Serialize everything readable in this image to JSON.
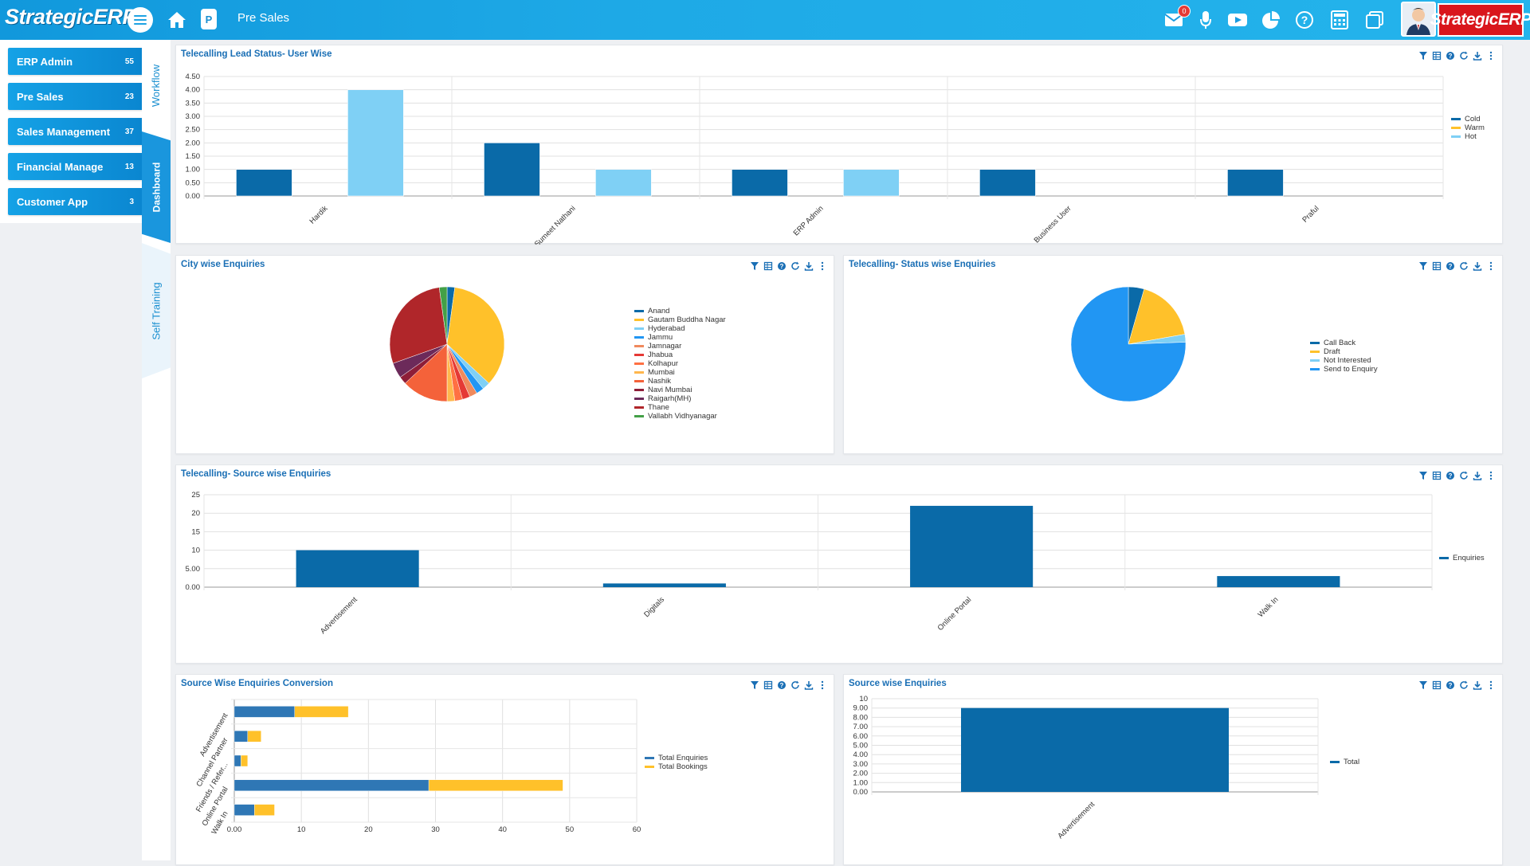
{
  "header": {
    "logo_text": "StrategicERP",
    "logo_mark": "®",
    "breadcrumb": "Pre Sales",
    "p_label": "P",
    "mail_badge": "0",
    "brand_logo_text": "StrategicERP",
    "icons": [
      "menu-icon",
      "home-icon",
      "mail-icon",
      "mic-icon",
      "youtube-icon",
      "pie-chart-icon",
      "help-icon",
      "calculator-icon",
      "windows-icon"
    ],
    "accent_color": "#1ea9e6"
  },
  "sidebar": {
    "items": [
      {
        "label": "ERP Admin",
        "count": "55"
      },
      {
        "label": "Pre Sales",
        "count": "23"
      },
      {
        "label": "Sales Management",
        "count": "37"
      },
      {
        "label": "Financial Manage",
        "count": "13"
      },
      {
        "label": "Customer App",
        "count": "3"
      }
    ]
  },
  "vtabs": {
    "workflow": "Workflow",
    "dashboard": "Dashboard",
    "training": "Self Training"
  },
  "panels": {
    "lead_status": {
      "title": "Telecalling Lead Status- User Wise"
    },
    "city": {
      "title": "City wise Enquiries"
    },
    "status": {
      "title": "Telecalling- Status wise Enquiries"
    },
    "source": {
      "title": "Telecalling- Source wise Enquiries"
    },
    "conversion": {
      "title": "Source Wise Enquiries Conversion"
    },
    "source_total": {
      "title": "Source wise Enquiries"
    }
  },
  "chart_data": [
    {
      "type": "bar",
      "title": "Telecalling Lead Status- User Wise",
      "categories": [
        "Hardik",
        "Sumeet Nathani",
        "ERP Admin",
        "Business User",
        "Praful"
      ],
      "series": [
        {
          "name": "Cold",
          "color": "#0a6aa8",
          "values": [
            1,
            2,
            1,
            1,
            1
          ]
        },
        {
          "name": "Warm",
          "color": "#ffc12a",
          "values": [
            0,
            0,
            0,
            0,
            0
          ]
        },
        {
          "name": "Hot",
          "color": "#7fd0f5",
          "values": [
            4,
            1,
            1,
            0,
            0
          ]
        }
      ],
      "yticks": [
        "0.00",
        "0.50",
        "1.00",
        "1.50",
        "2.00",
        "2.50",
        "3.00",
        "3.50",
        "4.00",
        "4.50"
      ],
      "ylim": [
        0,
        4.5
      ],
      "legend": "right"
    },
    {
      "type": "pie",
      "title": "City wise Enquiries",
      "legend": "right",
      "slices": [
        {
          "label": "Anand",
          "value": 1,
          "color": "#0a6aa8"
        },
        {
          "label": "Gautam Buddha Nagar",
          "value": 16,
          "color": "#ffc12a"
        },
        {
          "label": "Hyderabad",
          "value": 1,
          "color": "#7fd0f5"
        },
        {
          "label": "Jammu",
          "value": 1,
          "color": "#2196f3"
        },
        {
          "label": "Jamnagar",
          "value": 1,
          "color": "#f08a5d"
        },
        {
          "label": "Jhabua",
          "value": 1,
          "color": "#e53935"
        },
        {
          "label": "Kolhapur",
          "value": 1,
          "color": "#ff7043"
        },
        {
          "label": "Mumbai",
          "value": 1,
          "color": "#ffb74d"
        },
        {
          "label": "Nashik",
          "value": 6,
          "color": "#f4623a"
        },
        {
          "label": "Navi Mumbai",
          "value": 1,
          "color": "#8e1e38"
        },
        {
          "label": "Raigarh(MH)",
          "value": 2,
          "color": "#6c2a5a"
        },
        {
          "label": "Thane",
          "value": 13,
          "color": "#b0262a"
        },
        {
          "label": "Vallabh Vidhyanagar",
          "value": 1,
          "color": "#43a047"
        }
      ]
    },
    {
      "type": "pie",
      "title": "Telecalling- Status wise Enquiries",
      "legend": "right",
      "slices": [
        {
          "label": "Call Back",
          "value": 2,
          "color": "#0a6aa8"
        },
        {
          "label": "Draft",
          "value": 8,
          "color": "#ffc12a"
        },
        {
          "label": "Not Interested",
          "value": 1,
          "color": "#7fd0f5"
        },
        {
          "label": "Send to Enquiry",
          "value": 34,
          "color": "#2196f3"
        }
      ]
    },
    {
      "type": "bar",
      "title": "Telecalling- Source wise Enquiries",
      "categories": [
        "Advertisement",
        "Digitals",
        "Online Portal",
        "Walk In"
      ],
      "series": [
        {
          "name": "Enquiries",
          "color": "#0a6aa8",
          "values": [
            10,
            1,
            22,
            3
          ]
        }
      ],
      "yticks": [
        "0.00",
        "5.00",
        "10",
        "15",
        "20",
        "25"
      ],
      "ylim": [
        0,
        25
      ],
      "legend": "right"
    },
    {
      "type": "bar",
      "orientation": "horizontal",
      "stacked": true,
      "title": "Source Wise Enquiries Conversion",
      "categories": [
        "Advertisement",
        "Channel Partner",
        "Friends / Refer...",
        "Online Portal",
        "Walk In"
      ],
      "series": [
        {
          "name": "Total Enquiries",
          "color": "#2f77b5",
          "values": [
            9,
            2,
            1,
            29,
            3
          ]
        },
        {
          "name": "Total Bookings",
          "color": "#ffc12a",
          "values": [
            8,
            2,
            1,
            20,
            3
          ]
        }
      ],
      "xticks": [
        "0.00",
        "10",
        "20",
        "30",
        "40",
        "50",
        "60"
      ],
      "xlim": [
        0,
        60
      ],
      "legend": "right"
    },
    {
      "type": "bar",
      "title": "Source wise Enquiries",
      "categories": [
        "Advertisement"
      ],
      "series": [
        {
          "name": "Total",
          "color": "#0a6aa8",
          "values": [
            9
          ]
        }
      ],
      "yticks": [
        "0.00",
        "1.00",
        "2.00",
        "3.00",
        "4.00",
        "5.00",
        "6.00",
        "7.00",
        "8.00",
        "9.00",
        "10"
      ],
      "ylim": [
        0,
        10
      ],
      "legend": "right"
    }
  ]
}
